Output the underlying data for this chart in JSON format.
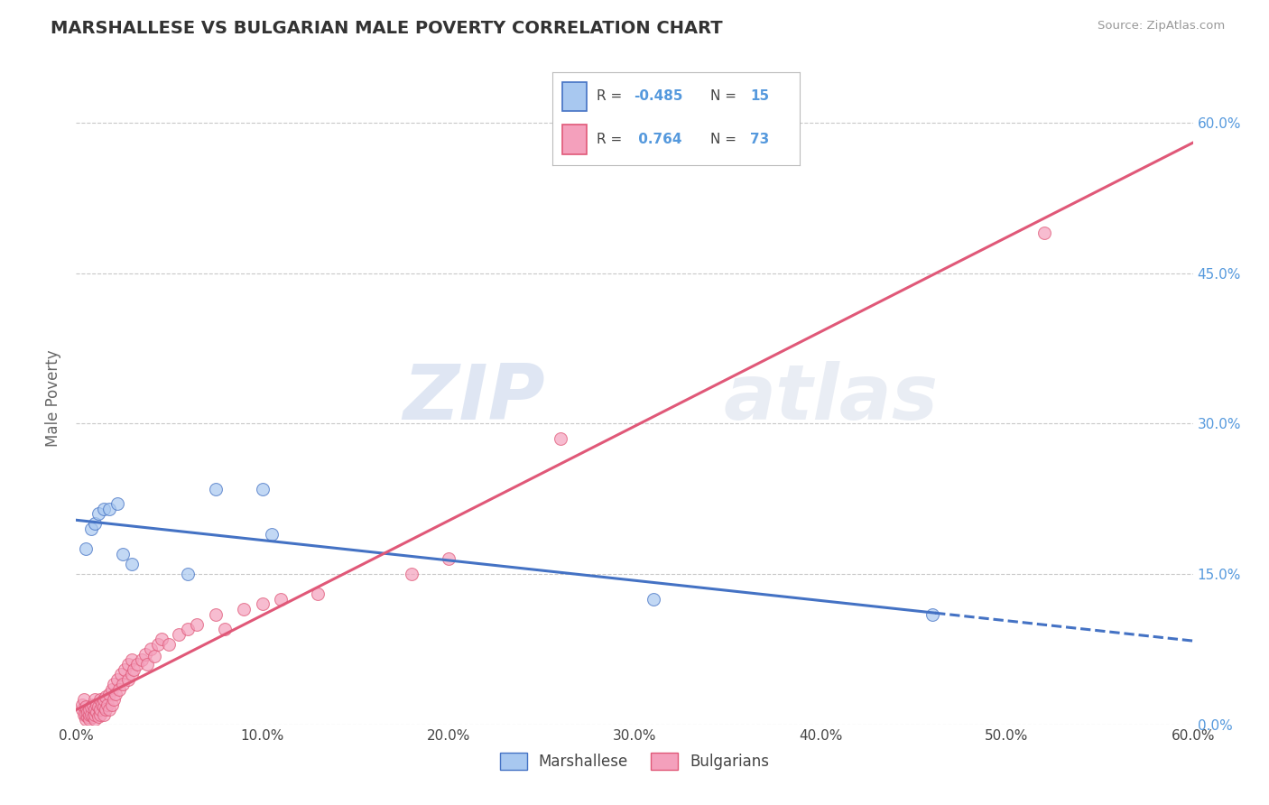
{
  "title": "MARSHALLESE VS BULGARIAN MALE POVERTY CORRELATION CHART",
  "source": "Source: ZipAtlas.com",
  "ylabel": "Male Poverty",
  "xlim": [
    0.0,
    0.6
  ],
  "ylim": [
    0.0,
    0.65
  ],
  "x_ticks": [
    0.0,
    0.1,
    0.2,
    0.3,
    0.4,
    0.5,
    0.6
  ],
  "x_tick_labels": [
    "0.0%",
    "10.0%",
    "20.0%",
    "30.0%",
    "40.0%",
    "50.0%",
    "60.0%"
  ],
  "y_ticks_right": [
    0.0,
    0.15,
    0.3,
    0.45,
    0.6
  ],
  "y_tick_labels_right": [
    "0.0%",
    "15.0%",
    "30.0%",
    "45.0%",
    "60.0%"
  ],
  "watermark": "ZIPatlas",
  "marshallese_color": "#a8c8f0",
  "bulgarian_color": "#f4a0bc",
  "marshallese_line_color": "#4472c4",
  "bulgarian_line_color": "#e05878",
  "R_marshallese": -0.485,
  "N_marshallese": 15,
  "R_bulgarian": 0.764,
  "N_bulgarian": 73,
  "legend_labels": [
    "Marshallese",
    "Bulgarians"
  ],
  "marshallese_x": [
    0.005,
    0.008,
    0.01,
    0.012,
    0.015,
    0.018,
    0.022,
    0.025,
    0.03,
    0.06,
    0.075,
    0.1,
    0.105,
    0.31,
    0.46
  ],
  "marshallese_y": [
    0.175,
    0.195,
    0.2,
    0.21,
    0.215,
    0.215,
    0.22,
    0.17,
    0.16,
    0.15,
    0.235,
    0.235,
    0.19,
    0.125,
    0.11
  ],
  "bulgarian_x": [
    0.003,
    0.003,
    0.004,
    0.004,
    0.005,
    0.005,
    0.005,
    0.006,
    0.006,
    0.007,
    0.007,
    0.007,
    0.008,
    0.008,
    0.009,
    0.009,
    0.01,
    0.01,
    0.01,
    0.01,
    0.011,
    0.011,
    0.012,
    0.012,
    0.013,
    0.013,
    0.013,
    0.014,
    0.015,
    0.015,
    0.015,
    0.016,
    0.016,
    0.017,
    0.018,
    0.018,
    0.019,
    0.019,
    0.02,
    0.02,
    0.021,
    0.022,
    0.023,
    0.024,
    0.025,
    0.026,
    0.028,
    0.028,
    0.03,
    0.03,
    0.031,
    0.033,
    0.035,
    0.037,
    0.038,
    0.04,
    0.042,
    0.044,
    0.046,
    0.05,
    0.055,
    0.06,
    0.065,
    0.075,
    0.08,
    0.09,
    0.1,
    0.11,
    0.13,
    0.18,
    0.2,
    0.26,
    0.52
  ],
  "bulgarian_y": [
    0.015,
    0.02,
    0.01,
    0.025,
    0.005,
    0.01,
    0.018,
    0.008,
    0.012,
    0.005,
    0.01,
    0.015,
    0.01,
    0.018,
    0.008,
    0.02,
    0.005,
    0.01,
    0.015,
    0.025,
    0.012,
    0.02,
    0.008,
    0.018,
    0.01,
    0.015,
    0.025,
    0.02,
    0.01,
    0.018,
    0.025,
    0.015,
    0.028,
    0.02,
    0.015,
    0.03,
    0.02,
    0.035,
    0.025,
    0.04,
    0.03,
    0.045,
    0.035,
    0.05,
    0.04,
    0.055,
    0.045,
    0.06,
    0.05,
    0.065,
    0.055,
    0.06,
    0.065,
    0.07,
    0.06,
    0.075,
    0.068,
    0.08,
    0.085,
    0.08,
    0.09,
    0.095,
    0.1,
    0.11,
    0.095,
    0.115,
    0.12,
    0.125,
    0.13,
    0.15,
    0.165,
    0.285,
    0.49
  ],
  "grid_color": "#c8c8c8",
  "background_color": "#ffffff",
  "title_color": "#333333",
  "axis_label_color": "#666666",
  "tick_label_color_right": "#5599dd",
  "tick_label_color_bottom": "#444444",
  "legend_line1": "R = -0.485   N = 15",
  "legend_line2": "R =  0.764   N = 73"
}
